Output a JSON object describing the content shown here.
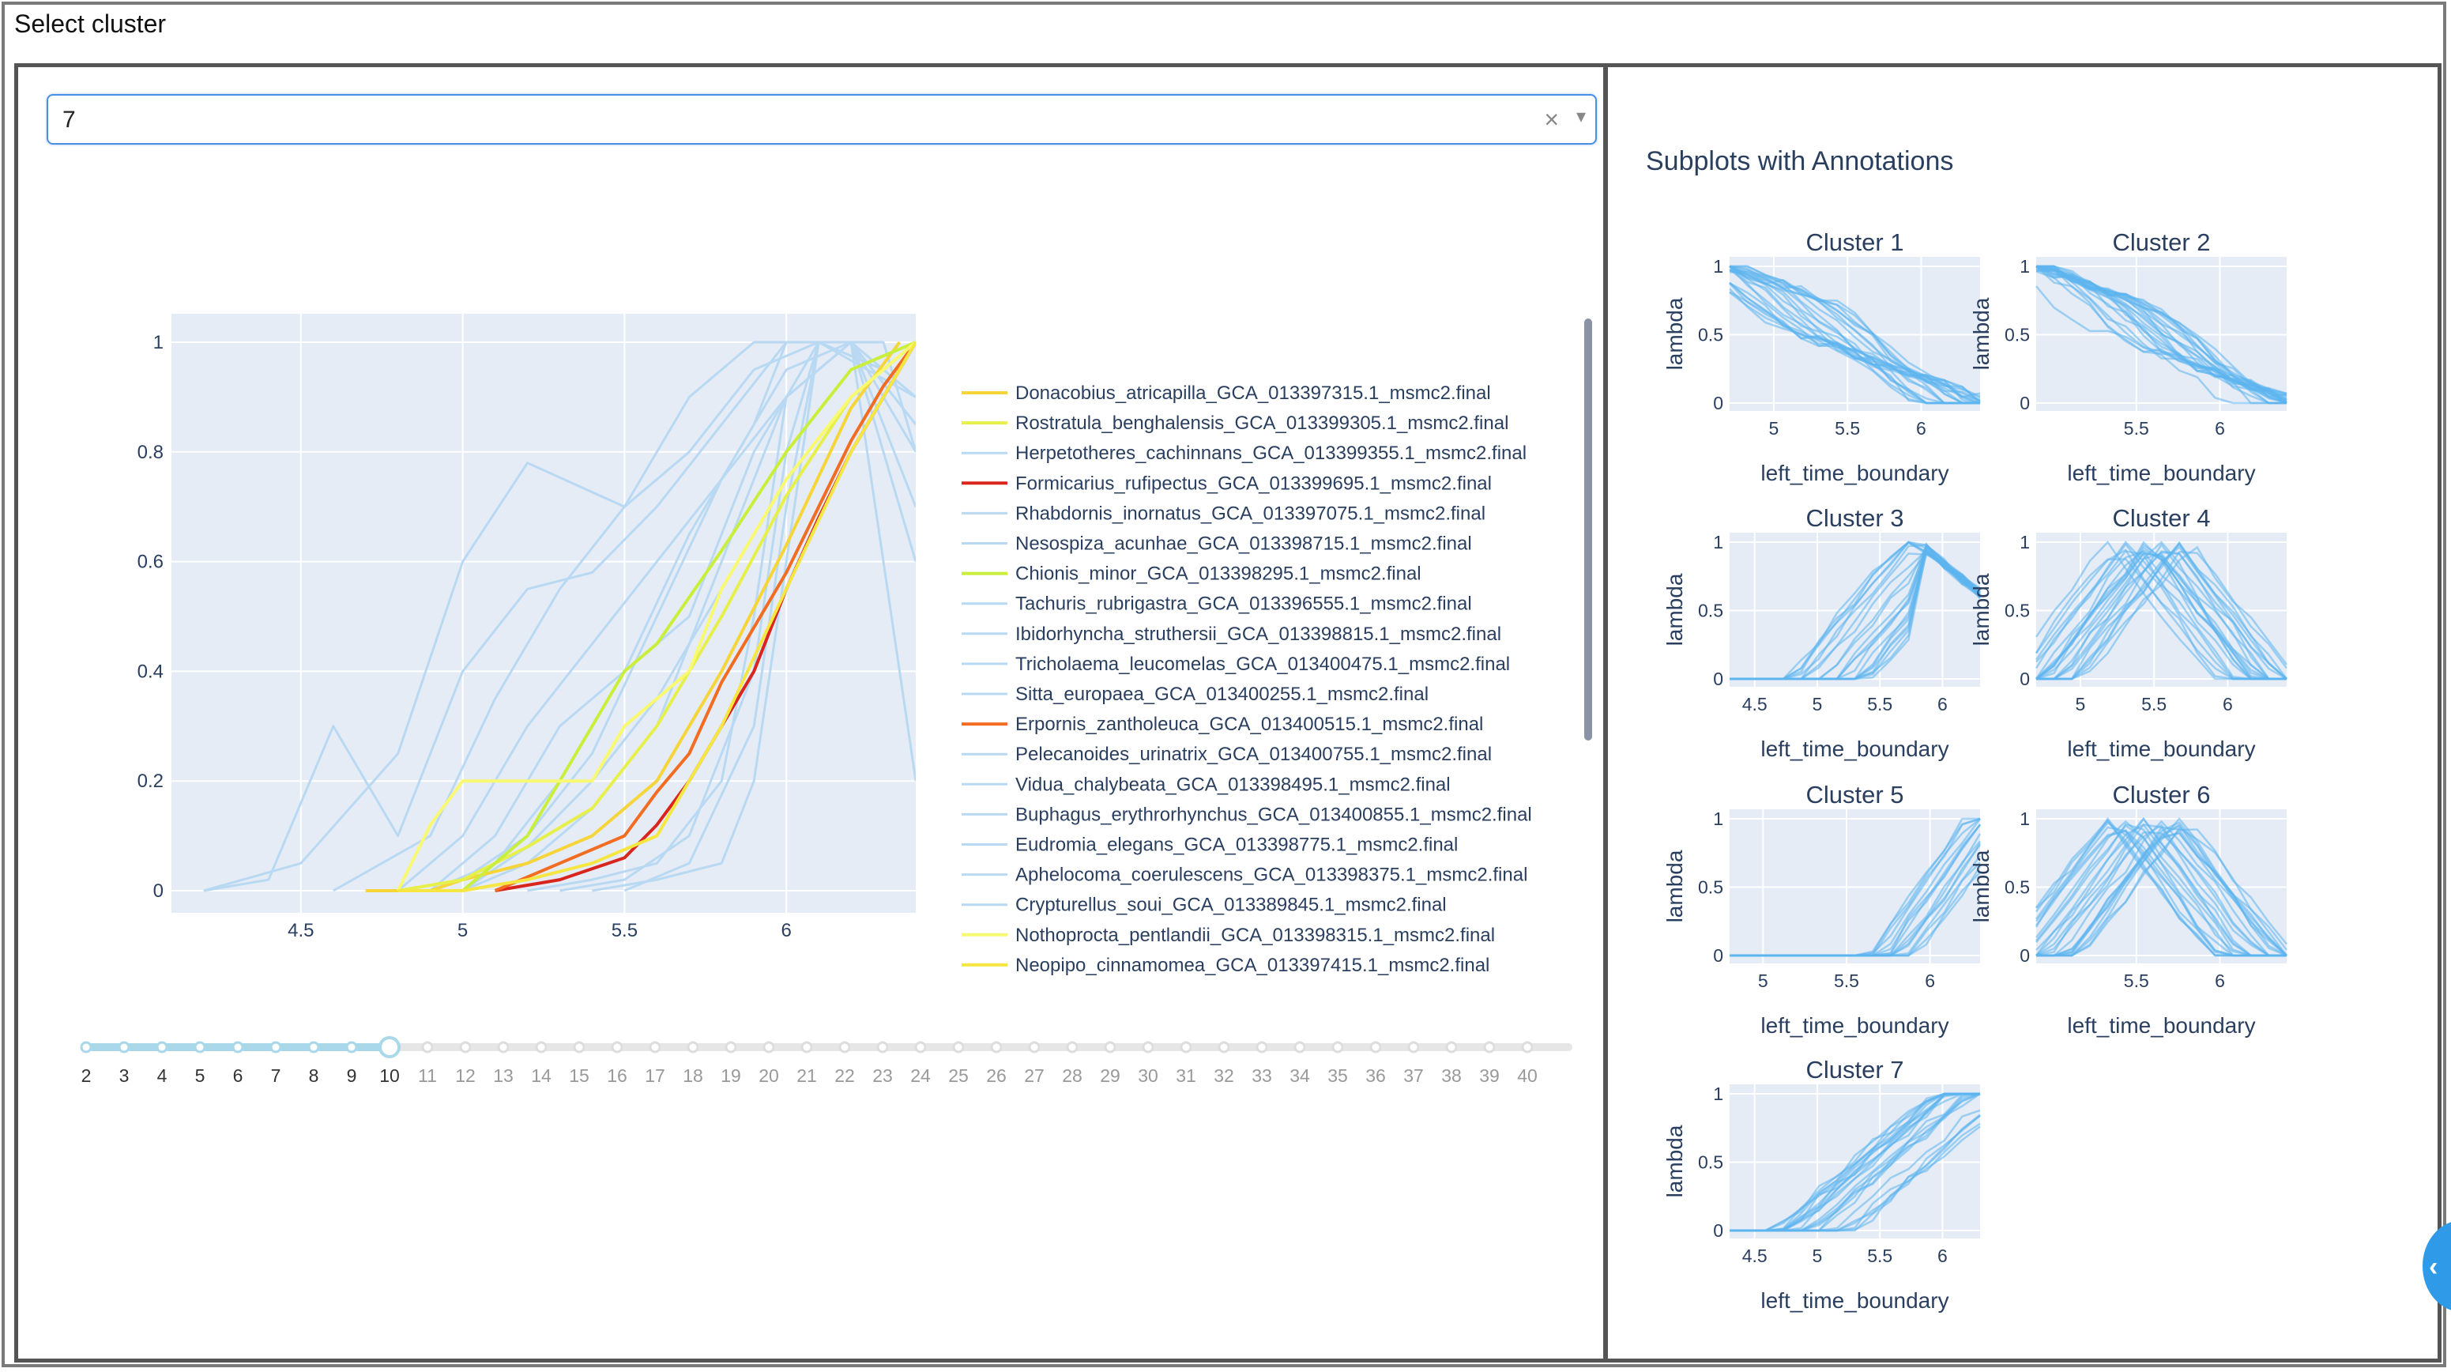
{
  "page": {
    "heading": "Select cluster"
  },
  "dropdown": {
    "value": "7",
    "clear_glyph": "×",
    "caret_glyph": "▾",
    "icons": [
      "clear-icon",
      "chevron-down-icon"
    ]
  },
  "colors": {
    "plot_bg": "#e5ecf6",
    "grid": "#ffffff",
    "text": "#2a3f5f",
    "faint_line": "#b9d9f3",
    "subplot_line": "#5cb4ee",
    "slider": "#a8d8ea",
    "panel_border": "#555555",
    "accent": "#4a90e2"
  },
  "chart_data": {
    "type": "line",
    "xlim": [
      4.1,
      6.4
    ],
    "ylim": [
      0,
      1
    ],
    "x_ticks": [
      "4.5",
      "5",
      "5.5",
      "6"
    ],
    "y_ticks": [
      "0",
      "0.2",
      "0.4",
      "0.6",
      "0.8",
      "1"
    ],
    "grid": true,
    "legend_position": "right",
    "series": [
      {
        "name": "Donacobius_atricapilla_GCA_013397315.1_msmc2.final",
        "color": "#f5d53a",
        "x": [
          4.7,
          4.9,
          5.0,
          5.2,
          5.4,
          5.6,
          5.8,
          6.0,
          6.2,
          6.35
        ],
        "y": [
          0,
          0,
          0.02,
          0.05,
          0.1,
          0.2,
          0.4,
          0.63,
          0.88,
          1
        ]
      },
      {
        "name": "Rostratula_benghalensis_GCA_013399305.1_msmc2.final",
        "color": "#e7f04a",
        "x": [
          4.8,
          5.0,
          5.2,
          5.4,
          5.6,
          5.8,
          6.0,
          6.2,
          6.4
        ],
        "y": [
          0,
          0.02,
          0.08,
          0.15,
          0.3,
          0.5,
          0.72,
          0.9,
          1
        ]
      },
      {
        "name": "Herpetotheres_cachinnans_GCA_013399355.1_msmc2.final",
        "color": "#b9d9f3",
        "x": [
          4.2,
          4.5,
          4.8,
          5.0,
          5.2,
          5.5,
          5.7,
          5.9,
          6.1,
          6.3
        ],
        "y": [
          0,
          0.05,
          0.25,
          0.6,
          0.78,
          0.7,
          0.9,
          1,
          1,
          0.95
        ]
      },
      {
        "name": "Formicarius_rufipectus_GCA_013399695.1_msmc2.final",
        "color": "#d8261e",
        "x": [
          5.1,
          5.3,
          5.5,
          5.6,
          5.7,
          5.8,
          5.9,
          6.0,
          6.1,
          6.2,
          6.3,
          6.4
        ],
        "y": [
          0,
          0.02,
          0.06,
          0.12,
          0.2,
          0.3,
          0.4,
          0.55,
          0.68,
          0.8,
          0.9,
          1
        ]
      },
      {
        "name": "Rhabdornis_inornatus_GCA_013397075.1_msmc2.final",
        "color": "#b9d9f3",
        "x": [
          4.6,
          4.9,
          5.1,
          5.3,
          5.5,
          5.7,
          5.9,
          6.1,
          6.4
        ],
        "y": [
          0,
          0.1,
          0.35,
          0.55,
          0.7,
          0.8,
          0.95,
          1,
          0.9
        ]
      },
      {
        "name": "Nesospiza_acunhae_GCA_013398715.1_msmc2.final",
        "color": "#b9d9f3",
        "x": [
          4.9,
          5.1,
          5.3,
          5.5,
          5.7,
          5.9,
          6.0,
          6.2,
          6.4
        ],
        "y": [
          0,
          0.05,
          0.2,
          0.4,
          0.65,
          0.85,
          1,
          1,
          0.7
        ]
      },
      {
        "name": "Chionis_minor_GCA_013398295.1_msmc2.final",
        "color": "#c9ef3c",
        "x": [
          5.0,
          5.2,
          5.3,
          5.5,
          5.6,
          5.8,
          6.0,
          6.2,
          6.4
        ],
        "y": [
          0,
          0.1,
          0.2,
          0.4,
          0.45,
          0.62,
          0.8,
          0.95,
          1
        ]
      },
      {
        "name": "Tachuris_rubrigastra_GCA_013396555.1_msmc2.final",
        "color": "#b9d9f3",
        "x": [
          4.8,
          5.0,
          5.2,
          5.4,
          5.6,
          5.8,
          6.0,
          6.2,
          6.4
        ],
        "y": [
          0,
          0.02,
          0.1,
          0.25,
          0.5,
          0.75,
          0.95,
          1,
          0.8
        ]
      },
      {
        "name": "Ibidorhyncha_struthersii_GCA_013398815.1_msmc2.final",
        "color": "#b9d9f3",
        "x": [
          5.2,
          5.4,
          5.6,
          5.8,
          5.9,
          6.0,
          6.2,
          6.4
        ],
        "y": [
          0,
          0.02,
          0.05,
          0.2,
          0.5,
          0.9,
          1,
          0.2
        ]
      },
      {
        "name": "Tricholaema_leucomelas_GCA_013400475.1_msmc2.final",
        "color": "#b9d9f3",
        "x": [
          5.0,
          5.2,
          5.4,
          5.6,
          5.8,
          6.0,
          6.2,
          6.4
        ],
        "y": [
          0,
          0.05,
          0.15,
          0.3,
          0.6,
          0.9,
          1,
          0.9
        ]
      },
      {
        "name": "Sitta_europaea_GCA_013400255.1_msmc2.final",
        "color": "#b9d9f3",
        "x": [
          4.9,
          5.1,
          5.3,
          5.5,
          5.7,
          5.9,
          6.1,
          6.3
        ],
        "y": [
          0,
          0.1,
          0.3,
          0.4,
          0.5,
          0.8,
          1,
          0.95
        ]
      },
      {
        "name": "Erpornis_zantholeuca_GCA_013400515.1_msmc2.final",
        "color": "#f26c21",
        "x": [
          5.1,
          5.3,
          5.5,
          5.6,
          5.7,
          5.8,
          5.9,
          6.0,
          6.1,
          6.2,
          6.3,
          6.4
        ],
        "y": [
          0,
          0.05,
          0.1,
          0.18,
          0.25,
          0.38,
          0.48,
          0.58,
          0.7,
          0.82,
          0.92,
          1
        ]
      },
      {
        "name": "Pelecanoides_urinatrix_GCA_013400755.1_msmc2.final",
        "color": "#b9d9f3",
        "x": [
          5.3,
          5.5,
          5.7,
          5.9,
          6.0,
          6.1,
          6.3,
          6.4
        ],
        "y": [
          0,
          0.02,
          0.1,
          0.4,
          0.8,
          1,
          1,
          0.8
        ]
      },
      {
        "name": "Vidua_chalybeata_GCA_013398495.1_msmc2.final",
        "color": "#b9d9f3",
        "x": [
          4.2,
          4.4,
          4.6,
          4.8,
          5.0,
          5.2,
          5.4,
          5.6,
          5.8,
          6.0,
          6.2,
          6.4
        ],
        "y": [
          0,
          0.02,
          0.3,
          0.1,
          0.4,
          0.55,
          0.58,
          0.7,
          0.85,
          1,
          1,
          0.6
        ]
      },
      {
        "name": "Buphagus_erythrorhynchus_GCA_013400855.1_msmc2.final",
        "color": "#b9d9f3",
        "x": [
          5.4,
          5.6,
          5.8,
          5.9,
          6.0,
          6.1,
          6.2,
          6.4
        ],
        "y": [
          0,
          0.02,
          0.05,
          0.2,
          0.6,
          1,
          1,
          0.9
        ]
      },
      {
        "name": "Eudromia_elegans_GCA_013398775.1_msmc2.final",
        "color": "#b9d9f3",
        "x": [
          5.0,
          5.2,
          5.4,
          5.6,
          5.8,
          6.0,
          6.2,
          6.4
        ],
        "y": [
          0,
          0.08,
          0.2,
          0.35,
          0.55,
          0.75,
          0.9,
          1
        ]
      },
      {
        "name": "Aphelocoma_coerulescens_GCA_013398375.1_msmc2.final",
        "color": "#b9d9f3",
        "x": [
          4.8,
          5.0,
          5.2,
          5.4,
          5.6,
          5.8,
          6.0,
          6.2,
          6.4
        ],
        "y": [
          0,
          0.1,
          0.3,
          0.45,
          0.6,
          0.75,
          0.9,
          1,
          0.85
        ]
      },
      {
        "name": "Crypturellus_soui_GCA_013389845.1_msmc2.final",
        "color": "#b9d9f3",
        "x": [
          5.5,
          5.7,
          5.9,
          6.0,
          6.1,
          6.2,
          6.4
        ],
        "y": [
          0,
          0.05,
          0.3,
          0.7,
          1,
          1,
          0.85
        ]
      },
      {
        "name": "Nothoprocta_pentlandii_GCA_013398315.1_msmc2.final",
        "color": "#f9f871",
        "x": [
          4.8,
          4.9,
          5.0,
          5.2,
          5.4,
          5.5,
          5.7,
          5.8,
          6.0,
          6.2,
          6.4
        ],
        "y": [
          0,
          0.12,
          0.2,
          0.2,
          0.2,
          0.3,
          0.4,
          0.55,
          0.75,
          0.9,
          1
        ]
      },
      {
        "name": "Neopipo_cinnamomea_GCA_013397415.1_msmc2.final",
        "color": "#f5e642",
        "x": [
          4.8,
          5.0,
          5.2,
          5.4,
          5.6,
          5.8,
          6.0,
          6.2,
          6.4
        ],
        "y": [
          0,
          0,
          0.02,
          0.05,
          0.1,
          0.3,
          0.55,
          0.8,
          1
        ]
      }
    ]
  },
  "slider": {
    "marks": [
      "2",
      "3",
      "4",
      "5",
      "6",
      "7",
      "8",
      "9",
      "10",
      "11",
      "12",
      "13",
      "14",
      "15",
      "16",
      "17",
      "18",
      "19",
      "20",
      "21",
      "22",
      "23",
      "24",
      "25",
      "26",
      "27",
      "28",
      "29",
      "30",
      "31",
      "32",
      "33",
      "34",
      "35",
      "36",
      "37",
      "38",
      "39",
      "40"
    ],
    "selected": "10"
  },
  "right": {
    "title": "Subplots with Annotations",
    "xlabel": "left_time_boundary",
    "ylabel": "lambda",
    "y_ticks": [
      "0",
      "0.5",
      "1"
    ],
    "subplots": [
      {
        "title": "Cluster 1",
        "xlim": [
          4.7,
          6.4
        ],
        "x_ticks": [
          "5",
          "5.5",
          "6"
        ],
        "shape": "decline",
        "lines": 24
      },
      {
        "title": "Cluster 2",
        "xlim": [
          4.9,
          6.4
        ],
        "x_ticks": [
          "5.5",
          "6"
        ],
        "shape": "decline",
        "lines": 24
      },
      {
        "title": "Cluster 3",
        "xlim": [
          4.3,
          6.3
        ],
        "x_ticks": [
          "4.5",
          "5",
          "5.5",
          "6"
        ],
        "shape": "rise_fall",
        "lines": 22
      },
      {
        "title": "Cluster 4",
        "xlim": [
          4.7,
          6.4
        ],
        "x_ticks": [
          "5",
          "5.5",
          "6"
        ],
        "shape": "hump",
        "lines": 24
      },
      {
        "title": "Cluster 5",
        "xlim": [
          4.8,
          6.3
        ],
        "x_ticks": [
          "5",
          "5.5",
          "6"
        ],
        "shape": "late_rise",
        "lines": 16
      },
      {
        "title": "Cluster 6",
        "xlim": [
          4.9,
          6.4
        ],
        "x_ticks": [
          "5.5",
          "6"
        ],
        "shape": "hump",
        "lines": 26
      },
      {
        "title": "Cluster 7",
        "xlim": [
          4.3,
          6.3
        ],
        "x_ticks": [
          "4.5",
          "5",
          "5.5",
          "6"
        ],
        "shape": "rise",
        "lines": 24
      }
    ]
  },
  "side_button": {
    "glyph": "‹"
  }
}
